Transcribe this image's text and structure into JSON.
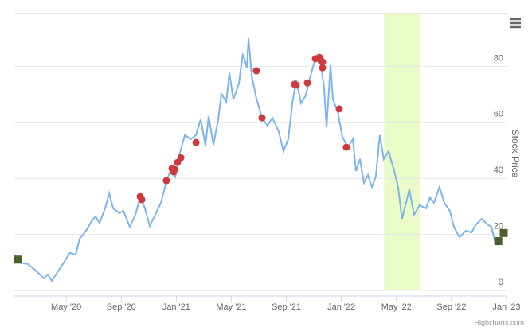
{
  "chart_data": {
    "type": "line",
    "y_axis_title": "Stock Price",
    "credits": "Highcharts.com",
    "xlim": [
      0.23,
      36
    ],
    "ylim": [
      0,
      99
    ],
    "xticks": [
      {
        "value": 4,
        "label": "May '20"
      },
      {
        "value": 8,
        "label": "Sep '20"
      },
      {
        "value": 12,
        "label": "Jan '21"
      },
      {
        "value": 16,
        "label": "May '21"
      },
      {
        "value": 20,
        "label": "Sep '21"
      },
      {
        "value": 24,
        "label": "Jan '22"
      },
      {
        "value": 28,
        "label": "May '22"
      },
      {
        "value": 32,
        "label": "Sep '22"
      },
      {
        "value": 36,
        "label": "Jan '23"
      }
    ],
    "yticks": [
      0,
      20,
      40,
      60,
      80
    ],
    "grid": true,
    "plot_band": {
      "from": 27.1,
      "to": 29.7,
      "color": "#ebfbc8"
    },
    "series": [
      {
        "type": "line",
        "color": "#7cb5ec",
        "x": [
          0.23,
          0.64,
          1.22,
          1.79,
          2.37,
          2.66,
          2.95,
          3.36,
          3.82,
          4.28,
          4.69,
          4.98,
          5.44,
          5.84,
          6.13,
          6.42,
          6.83,
          7.12,
          7.41,
          7.87,
          8.16,
          8.62,
          9.03,
          9.38,
          9.72,
          10.07,
          10.47,
          10.88,
          11.28,
          11.63,
          11.92,
          12.22,
          12.62,
          13.08,
          13.43,
          13.77,
          14.12,
          14.35,
          14.7,
          15.05,
          15.28,
          15.63,
          15.86,
          16.15,
          16.55,
          16.84,
          17.13,
          17.25,
          17.48,
          17.82,
          18.23,
          18.63,
          18.98,
          19.44,
          19.79,
          20.14,
          20.43,
          20.72,
          21.06,
          21.41,
          21.76,
          22.11,
          22.45,
          22.74,
          22.92,
          23.21,
          23.38,
          23.73,
          24.07,
          24.48,
          24.83,
          25.06,
          25.35,
          25.64,
          25.93,
          26.22,
          26.5,
          26.79,
          27.08,
          27.43,
          27.84,
          28.12,
          28.41,
          28.7,
          28.94,
          29.28,
          29.68,
          30.15,
          30.44,
          30.73,
          31.13,
          31.48,
          31.88,
          32.18,
          32.58,
          33.04,
          33.45,
          33.8,
          34.2,
          34.61,
          34.9,
          35.19,
          35.42
        ],
        "values": [
          12.8,
          9.9,
          9.4,
          7.1,
          4.3,
          5.7,
          3.4,
          6.5,
          9.9,
          13.4,
          12.8,
          18.5,
          21.3,
          24.7,
          26.4,
          24.1,
          29.3,
          34.7,
          29.3,
          27.6,
          28.4,
          22.7,
          27,
          33.5,
          29.3,
          23,
          27,
          31.3,
          38.9,
          43.5,
          40.6,
          48.3,
          55.4,
          54,
          55.4,
          61.1,
          51.7,
          62.2,
          52,
          61.1,
          70.2,
          67.3,
          77.6,
          68.2,
          73.9,
          84.4,
          79.5,
          90.1,
          76.7,
          68.5,
          61.6,
          58.8,
          61.6,
          56.8,
          49.7,
          54,
          66.8,
          75.3,
          66.8,
          69.6,
          76.7,
          82.7,
          83.2,
          72.4,
          58.2,
          80.4,
          68.2,
          63.9,
          54.8,
          51.1,
          54,
          42.6,
          46.9,
          38.4,
          41.2,
          36.9,
          40.6,
          55.4,
          46.9,
          49.7,
          42.6,
          36.9,
          25.6,
          31.3,
          36.1,
          27,
          30.4,
          29.3,
          33.2,
          31.3,
          36.9,
          31.3,
          28.4,
          22.7,
          19,
          21.3,
          20.7,
          23.6,
          25.6,
          23.6,
          22.7,
          17,
          17.9
        ]
      },
      {
        "type": "scatter",
        "marker": "circle",
        "color": "#cd3a3d",
        "x": [
          9.38,
          9.49,
          11.28,
          11.69,
          11.81,
          11.86,
          12.09,
          12.33,
          13.43,
          17.82,
          18.23,
          20.6,
          20.72,
          21.53,
          22.11,
          22.4,
          22.51,
          22.63,
          22.63,
          23.84,
          24.36
        ],
        "values": [
          33.5,
          32.4,
          39.2,
          43.5,
          42.3,
          43.2,
          45.7,
          47.4,
          52.8,
          78.4,
          61.6,
          73.6,
          73.3,
          74.1,
          82.7,
          83.2,
          82.1,
          81.5,
          79.5,
          64.8,
          51.1
        ]
      },
      {
        "type": "scatter",
        "marker": "square",
        "color": "#4b5f2b",
        "x": [
          0.5,
          35.4,
          35.8
        ],
        "values": [
          11,
          17.6,
          20.5
        ]
      }
    ]
  }
}
